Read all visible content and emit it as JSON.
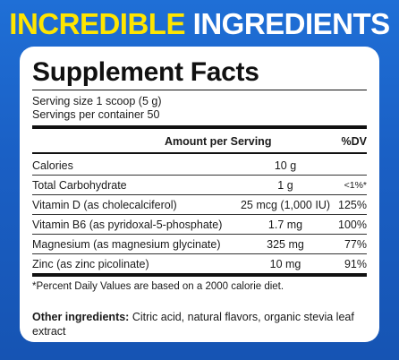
{
  "headline": {
    "word1": "INCREDIBLE",
    "word2": "INGREDIENTS"
  },
  "facts": {
    "title": "Supplement Facts",
    "serving_size": "Serving size 1 scoop (5 g)",
    "servings_per_container": "Servings per container 50",
    "header_amount": "Amount per Serving",
    "header_dv": "%DV",
    "rows": [
      {
        "name": "Calories",
        "amount": "10 g",
        "dv": ""
      },
      {
        "name": "Total Carbohydrate",
        "amount": "1 g",
        "dv": "<1%*"
      },
      {
        "name": "Vitamin D (as cholecalciferol)",
        "amount": "25 mcg (1,000 IU)",
        "dv": "125%"
      },
      {
        "name": "Vitamin B6 (as pyridoxal-5-phosphate)",
        "amount": "1.7 mg",
        "dv": "100%"
      },
      {
        "name": "Magnesium (as magnesium glycinate)",
        "amount": "325 mg",
        "dv": "77%"
      },
      {
        "name": "Zinc (as zinc picolinate)",
        "amount": "10 mg",
        "dv": "91%"
      }
    ],
    "footnote": "*Percent Daily Values are based on a 2000 calorie diet.",
    "other_label": "Other ingredients:",
    "other_text": " Citric acid, natural flavors, organic stevia leaf extract"
  }
}
